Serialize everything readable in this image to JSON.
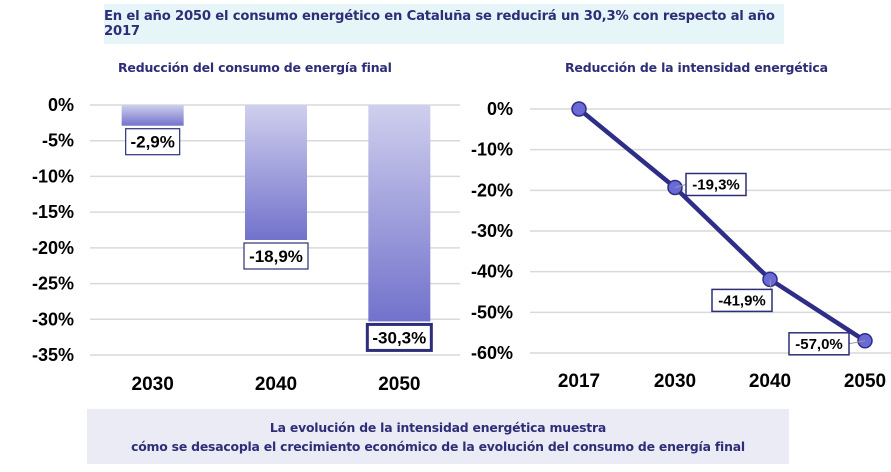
{
  "header": {
    "banner": "En el año 2050 el consumo energético en Cataluña se reducirá un 30,3% con respecto al año 2017"
  },
  "footer": {
    "line1": "La evolución de la intensidad energética muestra",
    "line2": "cómo se desacopla el crecimiento económico de la evolución del consumo de energía final"
  },
  "colors": {
    "title_text": "#2e2e78",
    "bar_top": "#cfcfee",
    "bar_bottom": "#7272cc",
    "line": "#2e2e88",
    "marker_fill": "#6a6ad6",
    "label_border": "#2e2e78",
    "grid": "#d9d9d9",
    "top_banner_bg": "#e6f5f8",
    "bottom_banner_bg": "#ebebf6"
  },
  "chart_data": [
    {
      "type": "bar",
      "title": "Reducción del consumo de energía final",
      "categories": [
        "2030",
        "2040",
        "2050"
      ],
      "values": [
        -2.9,
        -18.9,
        -30.3
      ],
      "data_labels": [
        "-2,9%",
        "-18,9%",
        "-30,3%"
      ],
      "highlighted": [
        false,
        false,
        true
      ],
      "xlabel": "",
      "ylabel": "",
      "ylim": [
        -35,
        0
      ],
      "yticks": [
        0,
        -5,
        -10,
        -15,
        -20,
        -25,
        -30,
        -35
      ],
      "ytick_labels": [
        "0%",
        "-5%",
        "-10%",
        "-15%",
        "-20%",
        "-25%",
        "-30%",
        "-35%"
      ],
      "grid": true,
      "legend": "none"
    },
    {
      "type": "line",
      "title": "Reducción de la intensidad energética",
      "categories": [
        "2017",
        "2030",
        "2040",
        "2050"
      ],
      "values": [
        0,
        -19.3,
        -41.9,
        -57.0
      ],
      "data_labels": [
        "",
        "-19,3%",
        "-41,9%",
        "-57,0%"
      ],
      "xlabel": "",
      "ylabel": "",
      "ylim": [
        -60,
        0
      ],
      "yticks": [
        0,
        -10,
        -20,
        -30,
        -40,
        -50,
        -60
      ],
      "ytick_labels": [
        "0%",
        "-10%",
        "-20%",
        "-30%",
        "-40%",
        "-50%",
        "-60%"
      ],
      "grid": true,
      "legend": "none"
    }
  ]
}
